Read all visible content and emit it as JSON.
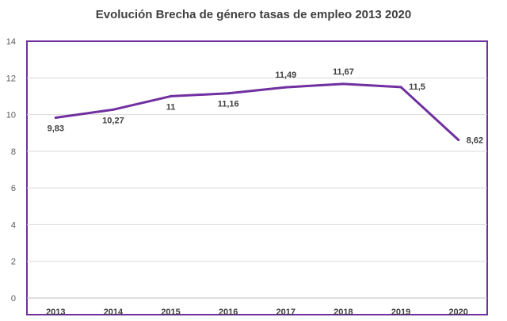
{
  "chart_data": {
    "type": "line",
    "title": "Evolución Brecha de género tasas de empleo 2013 2020",
    "categories": [
      "2013",
      "2014",
      "2015",
      "2016",
      "2017",
      "2018",
      "2019",
      "2020"
    ],
    "series": [
      {
        "values": [
          9.83,
          10.27,
          11,
          11.16,
          11.49,
          11.67,
          11.5,
          8.62
        ],
        "data_labels": [
          "9,83",
          "10,27",
          "11",
          "11,16",
          "11,49",
          "11,67",
          "11,5",
          "8,62"
        ],
        "color": "#7030A0"
      }
    ],
    "y_ticks": [
      "0",
      "2",
      "4",
      "6",
      "8",
      "10",
      "12",
      "14"
    ],
    "ylim": [
      0,
      14
    ],
    "xlabel": "",
    "ylabel": "",
    "grid": true,
    "legend": "none",
    "border_color": "#7030A0"
  }
}
